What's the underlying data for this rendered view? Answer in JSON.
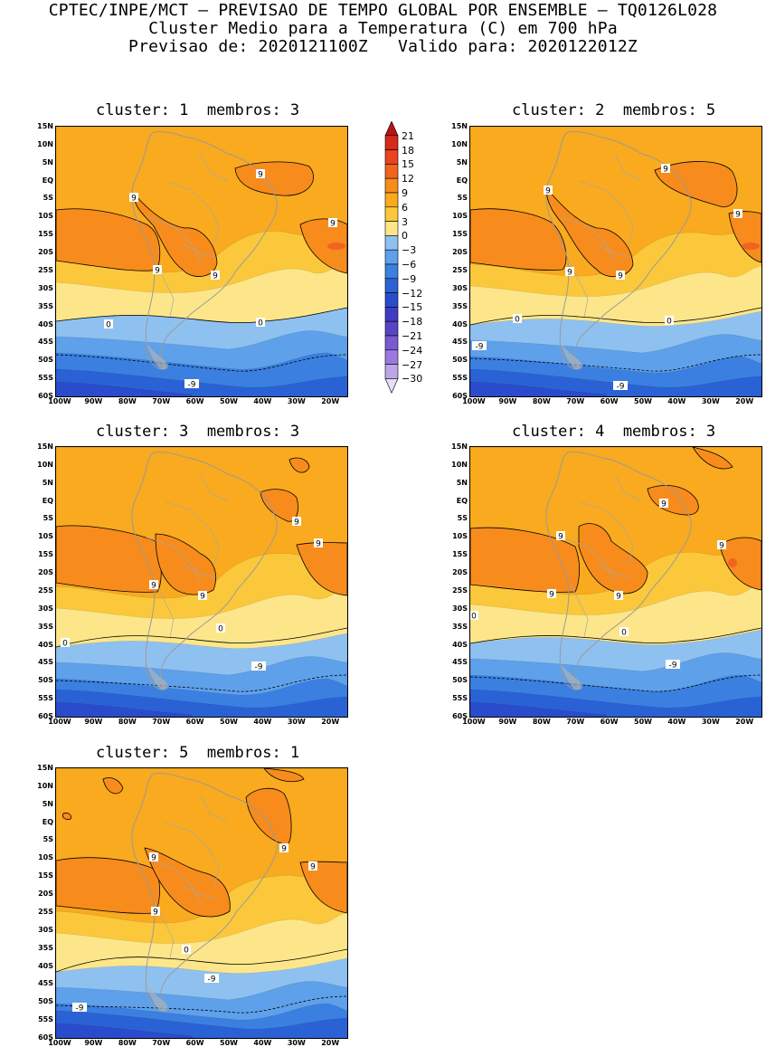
{
  "header": {
    "line1": "CPTEC/INPE/MCT — PREVISAO DE TEMPO GLOBAL POR ENSEMBLE — TQ0126L028",
    "line2": "Cluster Medio para a Temperatura (C) em 700 hPa",
    "line3": "Previsao de: 2020121100Z   Valido para: 2020122012Z"
  },
  "axes": {
    "lat_labels": [
      "15N",
      "10N",
      "5N",
      "EQ",
      "5S",
      "10S",
      "15S",
      "20S",
      "25S",
      "30S",
      "35S",
      "40S",
      "45S",
      "50S",
      "55S",
      "60S"
    ],
    "lon_labels": [
      "100W",
      "90W",
      "80W",
      "70W",
      "60W",
      "50W",
      "40W",
      "30W",
      "20W"
    ]
  },
  "colorbar": {
    "labels": [
      "21",
      "18",
      "15",
      "12",
      "9",
      "6",
      "3",
      "0",
      "-3",
      "-6",
      "-9",
      "-12",
      "-15",
      "-18",
      "-21",
      "-24",
      "-27",
      "-30"
    ],
    "colors": [
      "#b81414",
      "#d62a1a",
      "#e8441e",
      "#f0641e",
      "#f78c1c",
      "#f9aa1e",
      "#fbc83c",
      "#fde68a",
      "#8ec1f0",
      "#5ea0ea",
      "#3b80e0",
      "#2a62d6",
      "#2a4ccc",
      "#3e3cc4",
      "#5844c6",
      "#7a5ad0",
      "#9a7ade",
      "#bca6ea",
      "#e6ddf6"
    ]
  },
  "contour_labels": {
    "nine": "9",
    "zero": "0",
    "minus_nine": "-9"
  },
  "panels": [
    {
      "title": "cluster: 1  membros: 3"
    },
    {
      "title": "cluster: 2  membros: 5"
    },
    {
      "title": "cluster: 3  membros: 3"
    },
    {
      "title": "cluster: 4  membros: 3"
    },
    {
      "title": "cluster: 5  membros: 1"
    }
  ]
}
